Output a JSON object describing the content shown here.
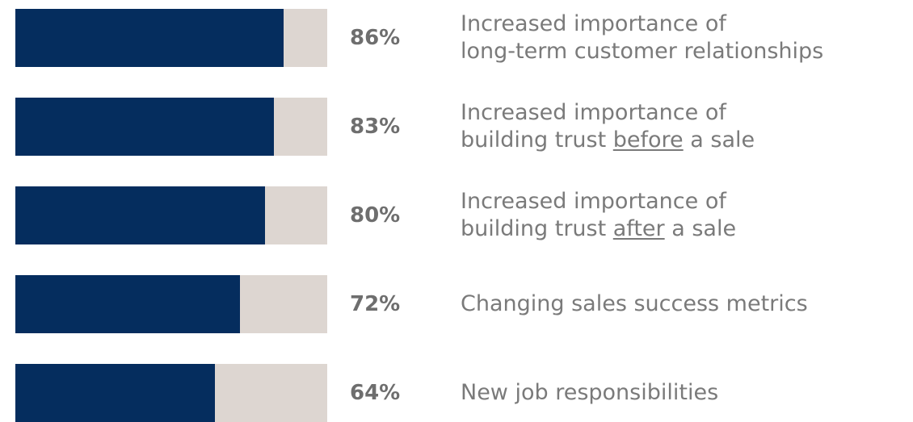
{
  "chart_data": {
    "type": "bar",
    "orientation": "horizontal",
    "categories": [
      [
        [
          "Increased importance of"
        ],
        [
          "long-term customer relationships"
        ]
      ],
      [
        [
          "Increased importance of"
        ],
        [
          "building trust ",
          "before",
          " a sale"
        ]
      ],
      [
        [
          "Increased importance of"
        ],
        [
          "building trust ",
          "after",
          " a sale"
        ]
      ],
      [
        [
          "Changing sales success metrics"
        ]
      ],
      [
        [
          "New job responsibilities"
        ]
      ]
    ],
    "values": [
      86,
      83,
      80,
      72,
      64
    ],
    "value_labels": [
      "86%",
      "83%",
      "80%",
      "72%",
      "64%"
    ],
    "xlim": [
      0,
      100
    ],
    "color": "#052d5e",
    "track_color": "#ddd6d1"
  }
}
